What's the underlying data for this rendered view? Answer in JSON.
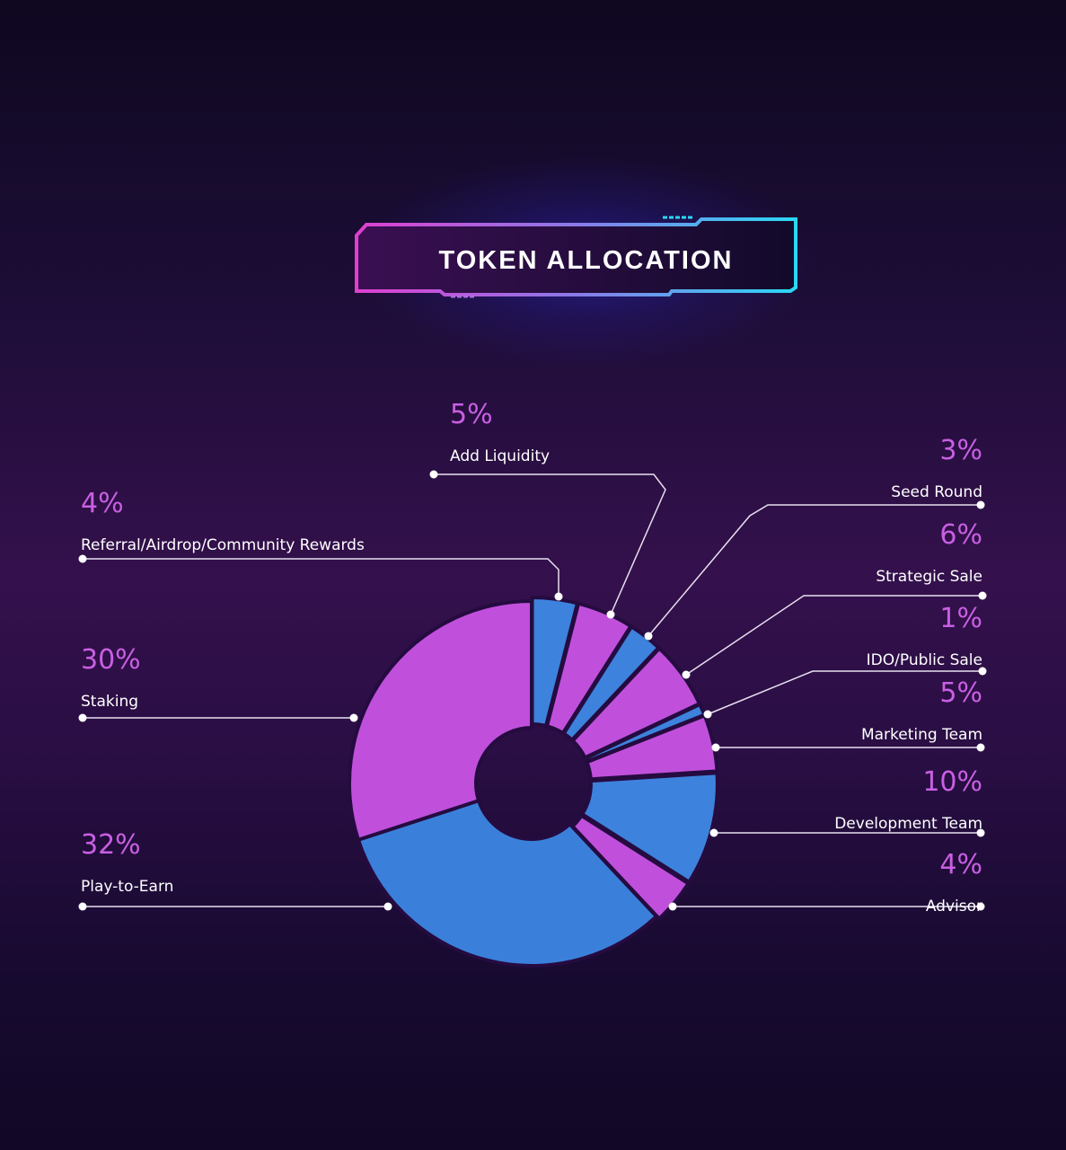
{
  "chart_data": {
    "type": "pie",
    "title": "TOKEN ALLOCATION",
    "donut": true,
    "categories": [
      "Referral/Airdrop/Community Rewards",
      "Add Liquidity",
      "Seed Round",
      "Strategic Sale",
      "IDO/Public Sale",
      "Marketing Team",
      "Development Team",
      "Advisor",
      "Play-to-Earn",
      "Staking"
    ],
    "values": [
      4,
      5,
      3,
      6,
      1,
      5,
      10,
      4,
      32,
      30
    ],
    "labels": [
      "4%",
      "5%",
      "3%",
      "6%",
      "1%",
      "5%",
      "10%",
      "4%",
      "32%",
      "30%"
    ],
    "colors": [
      "#3d82dc",
      "#c050dc",
      "#3d82dc",
      "#c050dc",
      "#3d82dc",
      "#c050dc",
      "#3d82dc",
      "#c050dc",
      "#3a80da",
      "#c04fdc"
    ]
  },
  "colors": {
    "magenta": "#c050dc",
    "blue": "#3d82dc",
    "pct_text": "#c95fe3",
    "frame_start": "#e03fd0",
    "frame_end": "#2ad8f5"
  }
}
